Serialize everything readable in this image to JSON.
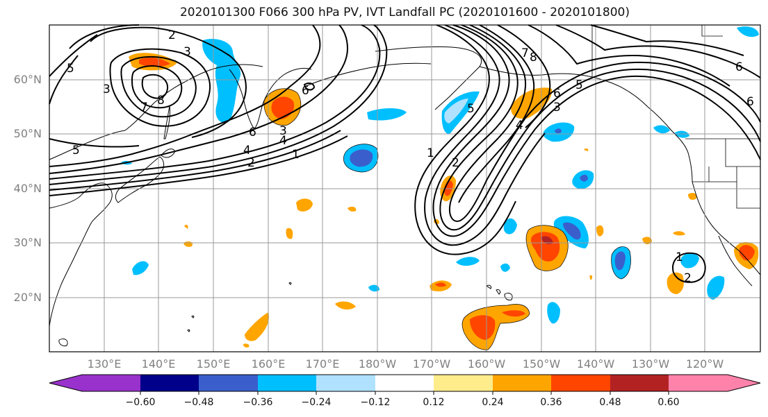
{
  "title": "2020101300 F066 300 hPa PV, IVT Landfall PC (2020101600 - 2020101800)",
  "latitude_labels": [
    "60°N",
    "50°N",
    "40°N",
    "30°N",
    "20°N"
  ],
  "longitude_labels": [
    "130°E",
    "140°E",
    "150°E",
    "160°E",
    "170°E",
    "180°W",
    "170°W",
    "160°W",
    "150°W",
    "140°W",
    "130°W",
    "120°W"
  ],
  "colorbar": {
    "tick_labels": [
      "−0.60",
      "−0.48",
      "−0.36",
      "−0.24",
      "−0.12",
      "0.12",
      "0.24",
      "0.36",
      "0.48",
      "0.60"
    ],
    "colors": [
      "#9932cc",
      "#00008b",
      "#3a5fcd",
      "#00bfff",
      "#b0e2ff",
      "#ffffff",
      "#ffec8b",
      "#ffa500",
      "#ff4500",
      "#b22222",
      "#ff82ab"
    ]
  },
  "contour_labels": [
    "2",
    "3",
    "3",
    "4",
    "5",
    "6",
    "7",
    "8",
    "2",
    "3",
    "4",
    "5",
    "6",
    "1",
    "1",
    "2",
    "3",
    "4",
    "5",
    "6",
    "7",
    "8",
    "6",
    "1",
    "2",
    "5",
    "6"
  ],
  "colors": {
    "contour": "#000000",
    "coast": "#000000",
    "grid": "#999999",
    "frame": "#000000"
  }
}
